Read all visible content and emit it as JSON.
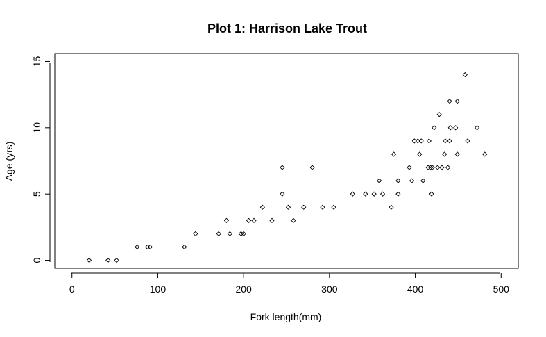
{
  "chart_data": {
    "type": "scatter",
    "title": "Plot 1: Harrison Lake Trout",
    "xlabel": "Fork length(mm)",
    "ylabel": "Age (yrs)",
    "xlim": [
      -20,
      520
    ],
    "ylim": [
      -0.6,
      15.6
    ],
    "xticks": [
      0,
      100,
      200,
      300,
      400,
      500
    ],
    "yticks": [
      0,
      5,
      10,
      15
    ],
    "marker": "open-diamond",
    "x": [
      20,
      42,
      52,
      76,
      88,
      91,
      131,
      144,
      171,
      180,
      184,
      197,
      200,
      206,
      212,
      222,
      233,
      245,
      245,
      252,
      258,
      270,
      280,
      292,
      305,
      327,
      342,
      352,
      358,
      362,
      372,
      375,
      380,
      380,
      393,
      396,
      399,
      403,
      405,
      407,
      409,
      415,
      416,
      418,
      419,
      420,
      422,
      426,
      428,
      431,
      434,
      435,
      438,
      440,
      440,
      441,
      447,
      449,
      449,
      458,
      461,
      472,
      481
    ],
    "y": [
      0,
      0,
      0,
      1,
      1,
      1,
      1,
      2,
      2,
      3,
      2,
      2,
      2,
      3,
      3,
      4,
      3,
      5,
      7,
      4,
      3,
      4,
      7,
      4,
      4,
      5,
      5,
      5,
      6,
      5,
      4,
      8,
      6,
      5,
      7,
      6,
      9,
      9,
      8,
      9,
      6,
      7,
      9,
      7,
      5,
      7,
      10,
      7,
      11,
      7,
      8,
      9,
      7,
      9,
      12,
      10,
      10,
      8,
      12,
      14,
      9,
      10,
      8
    ]
  }
}
